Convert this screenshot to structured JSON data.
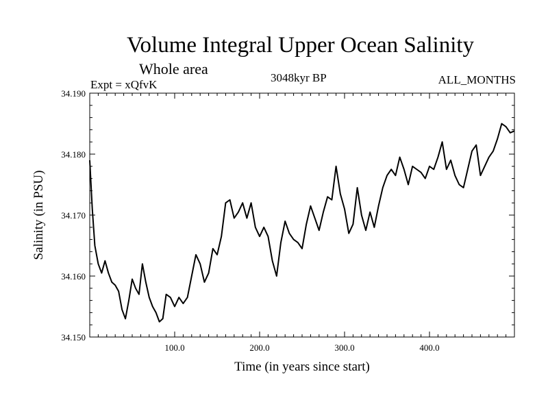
{
  "chart_data": {
    "type": "line",
    "title": "Volume Integral Upper Ocean Salinity",
    "subtitle": "Whole area",
    "experiment": "Expt = xQfvK",
    "center_label": "3048kyr BP",
    "right_label": "ALL_MONTHS",
    "xlabel": "Time (in years since start)",
    "ylabel": "Salinity (in PSU)",
    "xlim": [
      0,
      500
    ],
    "ylim": [
      34.15,
      34.19
    ],
    "x_ticks": [
      100,
      200,
      300,
      400
    ],
    "x_tick_labels": [
      "100.0",
      "200.0",
      "300.0",
      "400.0"
    ],
    "y_ticks": [
      34.15,
      34.16,
      34.17,
      34.18,
      34.19
    ],
    "y_tick_labels": [
      "34.150",
      "34.160",
      "34.170",
      "34.180",
      "34.190"
    ],
    "series": [
      {
        "name": "Salinity",
        "x": [
          0,
          3,
          6,
          10,
          14,
          18,
          22,
          26,
          30,
          34,
          38,
          42,
          46,
          50,
          54,
          58,
          62,
          66,
          70,
          74,
          78,
          82,
          86,
          90,
          95,
          100,
          105,
          110,
          115,
          120,
          125,
          130,
          135,
          140,
          145,
          150,
          155,
          160,
          165,
          170,
          175,
          180,
          185,
          190,
          195,
          200,
          205,
          210,
          215,
          220,
          225,
          230,
          235,
          240,
          245,
          250,
          255,
          260,
          265,
          270,
          275,
          280,
          285,
          290,
          295,
          300,
          305,
          310,
          315,
          320,
          325,
          330,
          335,
          340,
          345,
          350,
          355,
          360,
          365,
          370,
          375,
          380,
          385,
          390,
          395,
          400,
          405,
          410,
          415,
          420,
          425,
          430,
          435,
          440,
          445,
          450,
          455,
          460,
          465,
          470,
          475,
          480,
          485,
          490,
          495,
          500
        ],
        "values": [
          34.179,
          34.171,
          34.165,
          34.162,
          34.1605,
          34.1625,
          34.1605,
          34.159,
          34.1585,
          34.1575,
          34.1545,
          34.153,
          34.156,
          34.1595,
          34.158,
          34.157,
          34.162,
          34.159,
          34.1565,
          34.155,
          34.154,
          34.1525,
          34.153,
          34.157,
          34.1565,
          34.155,
          34.1565,
          34.1555,
          34.1565,
          34.16,
          34.1635,
          34.162,
          34.159,
          34.1605,
          34.1645,
          34.1635,
          34.1665,
          34.172,
          34.1725,
          34.1695,
          34.1705,
          34.172,
          34.1695,
          34.172,
          34.168,
          34.1665,
          34.168,
          34.1665,
          34.1625,
          34.16,
          34.1655,
          34.169,
          34.167,
          34.166,
          34.1655,
          34.1645,
          34.1685,
          34.1715,
          34.1695,
          34.1675,
          34.1705,
          34.173,
          34.1725,
          34.178,
          34.1735,
          34.171,
          34.167,
          34.1685,
          34.1745,
          34.17,
          34.1675,
          34.1705,
          34.168,
          34.1715,
          34.1745,
          34.1765,
          34.1775,
          34.1765,
          34.1795,
          34.1775,
          34.175,
          34.178,
          34.1775,
          34.177,
          34.176,
          34.178,
          34.1775,
          34.1795,
          34.182,
          34.1775,
          34.179,
          34.1765,
          34.175,
          34.1745,
          34.1775,
          34.1805,
          34.1815,
          34.1765,
          34.178,
          34.1795,
          34.1805,
          34.1825,
          34.185,
          34.1845,
          34.1835,
          34.1838
        ]
      }
    ]
  }
}
